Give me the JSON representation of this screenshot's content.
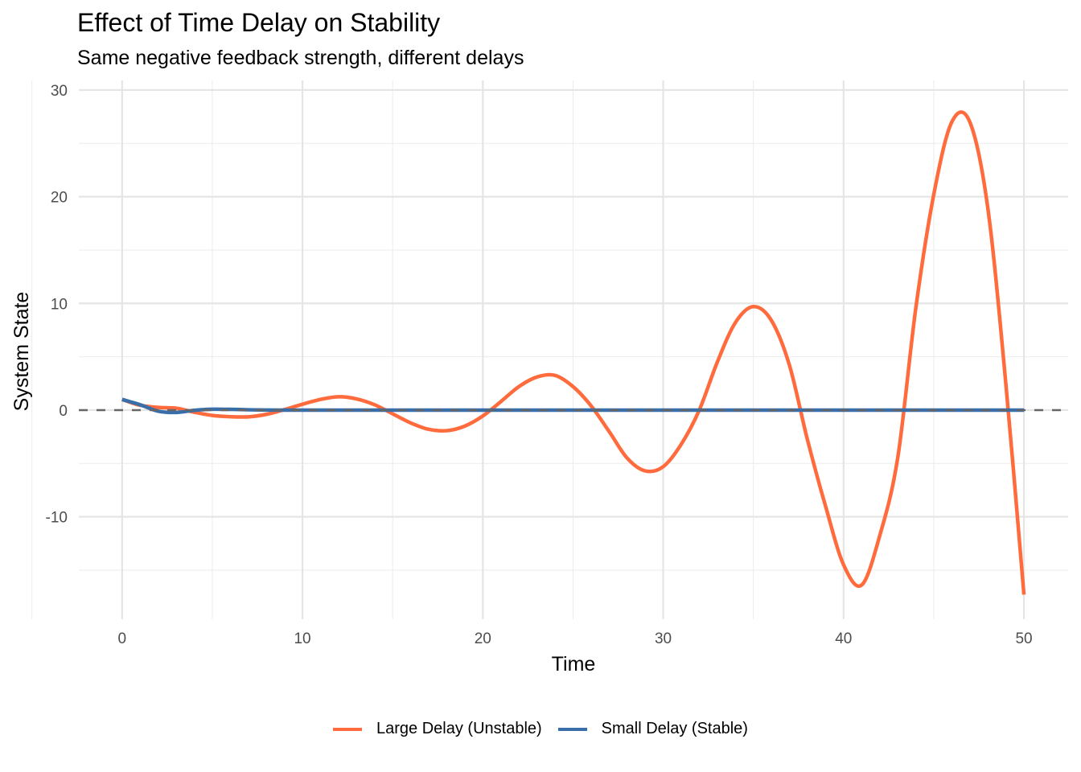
{
  "title": "Effect of Time Delay on Stability",
  "subtitle": "Same negative feedback strength, different delays",
  "chart_data": {
    "type": "line",
    "title": "Effect of Time Delay on Stability",
    "subtitle": "Same negative feedback strength, different delays",
    "xlabel": "Time",
    "ylabel": "System State",
    "xlim": [
      -2.4,
      52.45
    ],
    "ylim": [
      -19.6,
      30.9
    ],
    "xticks": [
      0,
      10,
      20,
      30,
      40,
      50
    ],
    "yticks": [
      -10,
      0,
      10,
      20,
      30
    ],
    "grid": true,
    "legend_position": "bottom",
    "reference_line": {
      "y": 0,
      "style": "dashed",
      "color": "#666666"
    },
    "x": [
      0,
      1,
      2,
      3,
      4,
      5,
      6,
      7,
      8,
      9,
      10,
      11,
      12,
      13,
      14,
      15,
      16,
      17,
      18,
      19,
      20,
      21,
      22,
      23,
      24,
      25,
      26,
      27,
      28,
      29,
      30,
      31,
      32,
      33,
      34,
      35,
      36,
      37,
      38,
      39,
      40,
      41,
      42,
      43,
      44,
      45,
      46,
      47,
      48,
      49,
      50
    ],
    "series": [
      {
        "name": "Large Delay (Unstable)",
        "color": "#FF6B3D",
        "values": [
          1.0,
          0.45,
          0.25,
          0.18,
          -0.2,
          -0.5,
          -0.62,
          -0.63,
          -0.4,
          0.05,
          0.55,
          1.0,
          1.25,
          1.05,
          0.5,
          -0.35,
          -1.2,
          -1.8,
          -1.93,
          -1.5,
          -0.55,
          0.8,
          2.2,
          3.1,
          3.25,
          2.2,
          0.4,
          -2.0,
          -4.5,
          -5.7,
          -5.3,
          -3.2,
          0.0,
          4.5,
          8.2,
          9.7,
          8.4,
          4.2,
          -2.8,
          -9.0,
          -14.5,
          -16.4,
          -11.8,
          -4.5,
          9.5,
          20.2,
          27.0,
          27.0,
          18.9,
          2.4,
          -17.3
        ]
      },
      {
        "name": "Small Delay (Stable)",
        "color": "#3A6EA8",
        "values": [
          1.0,
          0.5,
          -0.1,
          -0.22,
          -0.02,
          0.08,
          0.07,
          0.03,
          0.01,
          0,
          0,
          0,
          0,
          0,
          0,
          0,
          0,
          0,
          0,
          0,
          0,
          0,
          0,
          0,
          0,
          0,
          0,
          0,
          0,
          0,
          0,
          0,
          0,
          0,
          0,
          0,
          0,
          0,
          0,
          0,
          0,
          0,
          0,
          0,
          0,
          0,
          0,
          0,
          0,
          0,
          0
        ]
      }
    ]
  }
}
